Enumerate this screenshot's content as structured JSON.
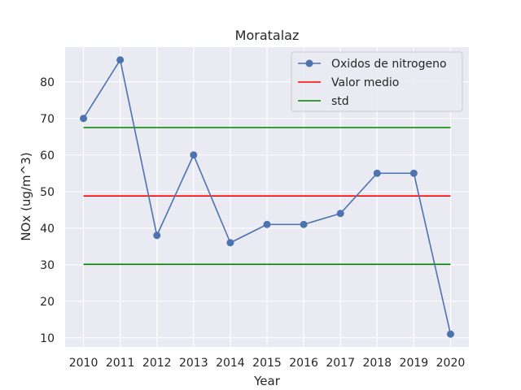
{
  "chart_data": {
    "type": "line",
    "title": "Moratalaz",
    "xlabel": "Year",
    "ylabel": "NOx (ug/m^3)",
    "x": [
      2010,
      2011,
      2012,
      2013,
      2014,
      2015,
      2016,
      2017,
      2018,
      2019,
      2020
    ],
    "xlim": [
      2009.5,
      2020.5
    ],
    "ylim": [
      7.5,
      89.5
    ],
    "yticks": [
      10,
      20,
      30,
      40,
      50,
      60,
      70,
      80
    ],
    "grid": true,
    "legend_position": "top-right",
    "series": [
      {
        "name": "Oxidos de nitrogeno",
        "color": "#4c72b0",
        "marker": "circle",
        "values": [
          70,
          86,
          38,
          60,
          36,
          41,
          41,
          44,
          55,
          55,
          11
        ]
      }
    ],
    "hlines": [
      {
        "name": "Valor medio",
        "color": "#ff0000",
        "y": 48.8,
        "x_from": 2010,
        "x_to": 2020
      },
      {
        "name": "std",
        "color": "#008000",
        "y": 67.5,
        "x_from": 2010,
        "x_to": 2020
      },
      {
        "name": "",
        "color": "#008000",
        "y": 30.1,
        "x_from": 2010,
        "x_to": 2020
      }
    ]
  }
}
